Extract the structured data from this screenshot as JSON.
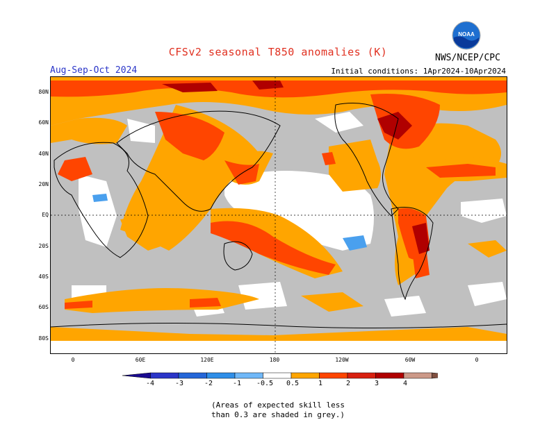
{
  "header": {
    "title": "CFSv2 seasonal T850 anomalies (K)",
    "season": "Aug-Sep-Oct 2024",
    "initial_conditions": "Initial conditions: 1Apr2024-10Apr2024",
    "agency": "NWS/NCEP/CPC",
    "logo_text": "NOAA"
  },
  "map": {
    "lat_labels": [
      "80N",
      "60N",
      "40N",
      "20N",
      "EQ",
      "20S",
      "40S",
      "60S",
      "80S"
    ],
    "lon_labels": [
      "0",
      "60E",
      "120E",
      "180",
      "120W",
      "60W",
      "0"
    ],
    "colors": {
      "skill_grey": "#c0c0c0",
      "anom_0_5_1": "#ffa500",
      "anom_1_2": "#ff4500",
      "anom_2_3": "#b00000",
      "anom_neg_0_5_1": "#4aa0ee"
    }
  },
  "colorbar": {
    "labels": [
      "-4",
      "-3",
      "-2",
      "-1",
      "-0.5",
      "0.5",
      "1",
      "2",
      "3",
      "4"
    ],
    "colors": [
      "#1a0a90",
      "#2b35c8",
      "#2466d8",
      "#2e8ee8",
      "#70b8f8",
      "#ffffff",
      "#ffa500",
      "#ff4500",
      "#d82010",
      "#b00000",
      "#cc9988",
      "#805040"
    ]
  },
  "footnote": {
    "line1": "(Areas of expected skill less",
    "line2": "than 0.3 are shaded in grey.)"
  }
}
